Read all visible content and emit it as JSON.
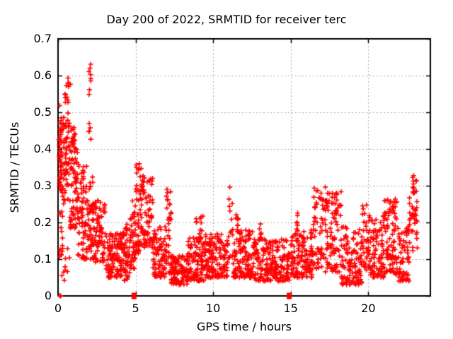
{
  "window": {
    "background": "#ffffff",
    "text_color": "#000000"
  },
  "chart_data": {
    "type": "scatter",
    "title": "Day 200 of 2022, SRMTID for receiver terc",
    "xlabel": "GPS time / hours",
    "ylabel": "SRMTID / TECUs",
    "xlim": [
      0,
      24
    ],
    "ylim": [
      0,
      0.7
    ],
    "xticks": {
      "values": [
        0,
        5,
        10,
        15,
        20
      ],
      "labels": [
        "0",
        "5",
        "10",
        "15",
        "20"
      ]
    },
    "yticks": {
      "values": [
        0,
        0.1,
        0.2,
        0.3,
        0.4,
        0.5,
        0.6,
        0.7
      ],
      "labels": [
        "0",
        "0.1",
        "0.2",
        "0.3",
        "0.4",
        "0.5",
        "0.6",
        "0.7"
      ]
    },
    "grid": true,
    "grid_color": "#a8a8a8",
    "axis_color": "#000000",
    "legend_position": "none",
    "marker": {
      "shape": "plus",
      "size": 7,
      "color": "#ff0000"
    },
    "series": [
      {
        "name": "SRMTID",
        "representation": "density_bands",
        "seed": 42,
        "bands": [
          [
            0.08,
            0.3,
            0.1,
            0.52,
            40,
            1
          ],
          [
            0.05,
            0.25,
            0.3,
            0.47,
            25,
            1
          ],
          [
            0.1,
            1.0,
            0.04,
            0.13,
            10,
            1
          ],
          [
            0.3,
            0.75,
            0.25,
            0.5,
            55,
            1
          ],
          [
            0.45,
            0.8,
            0.52,
            0.595,
            13,
            1
          ],
          [
            0.75,
            1.25,
            0.18,
            0.47,
            75,
            1.2
          ],
          [
            1.25,
            1.85,
            0.1,
            0.36,
            75,
            1.3
          ],
          [
            1.85,
            2.25,
            0.1,
            0.34,
            45,
            1.2
          ],
          [
            1.95,
            2.15,
            0.42,
            0.5,
            5,
            1
          ],
          [
            1.97,
            2.12,
            0.545,
            0.645,
            8,
            1
          ],
          [
            2.25,
            3.05,
            0.09,
            0.26,
            85,
            1.3
          ],
          [
            3.05,
            4.25,
            0.05,
            0.17,
            115,
            1.3
          ],
          [
            4.0,
            4.3,
            0.13,
            0.18,
            8,
            1
          ],
          [
            4.25,
            4.65,
            0.04,
            0.2,
            42,
            1.2
          ],
          [
            4.65,
            5.0,
            0.07,
            0.26,
            40,
            1.2
          ],
          [
            5.0,
            5.4,
            0.11,
            0.36,
            50,
            1.2
          ],
          [
            5.4,
            6.1,
            0.13,
            0.33,
            75,
            1.3
          ],
          [
            6.1,
            6.95,
            0.05,
            0.19,
            75,
            1.3
          ],
          [
            6.95,
            7.3,
            0.06,
            0.3,
            38,
            1.2
          ],
          [
            7.3,
            8.35,
            0.03,
            0.11,
            100,
            1.2
          ],
          [
            8.35,
            9.4,
            0.04,
            0.16,
            95,
            1.3
          ],
          [
            8.9,
            9.35,
            0.15,
            0.225,
            13,
            1
          ],
          [
            9.4,
            10.9,
            0.05,
            0.17,
            140,
            1.4
          ],
          [
            10.9,
            11.25,
            0.2,
            0.31,
            6,
            1
          ],
          [
            10.9,
            11.3,
            0.08,
            0.2,
            15,
            1
          ],
          [
            11.3,
            12.6,
            0.05,
            0.18,
            120,
            1.5
          ],
          [
            11.4,
            11.65,
            0.16,
            0.225,
            9,
            1
          ],
          [
            12.6,
            14.9,
            0.04,
            0.16,
            200,
            1.5
          ],
          [
            12.95,
            13.15,
            0.14,
            0.21,
            7,
            1
          ],
          [
            15.0,
            16.45,
            0.05,
            0.18,
            130,
            1.5
          ],
          [
            15.35,
            15.65,
            0.16,
            0.23,
            7,
            1
          ],
          [
            16.45,
            17.15,
            0.07,
            0.295,
            55,
            1.3
          ],
          [
            17.15,
            18.25,
            0.06,
            0.285,
            80,
            1.6
          ],
          [
            17.2,
            17.45,
            0.22,
            0.3,
            8,
            1
          ],
          [
            17.8,
            18.1,
            0.2,
            0.28,
            8,
            1
          ],
          [
            18.25,
            19.6,
            0.03,
            0.19,
            110,
            1.4
          ],
          [
            19.6,
            20.15,
            0.07,
            0.26,
            45,
            1.3
          ],
          [
            20.15,
            21.0,
            0.05,
            0.21,
            75,
            1.4
          ],
          [
            20.95,
            21.15,
            0.17,
            0.28,
            8,
            1
          ],
          [
            21.0,
            21.85,
            0.06,
            0.27,
            70,
            1.5
          ],
          [
            21.55,
            21.75,
            0.16,
            0.27,
            8,
            1
          ],
          [
            21.85,
            22.65,
            0.04,
            0.19,
            65,
            1.4
          ],
          [
            22.65,
            23.05,
            0.11,
            0.27,
            22,
            1
          ],
          [
            22.85,
            23.1,
            0.28,
            0.33,
            14,
            1
          ],
          [
            23.0,
            23.25,
            0.13,
            0.26,
            10,
            1
          ]
        ],
        "zero_points": [
          [
            0.12,
            0
          ],
          [
            0.18,
            0
          ]
        ],
        "zero_squares": [
          [
            4.9,
            0
          ],
          [
            14.9,
            0
          ]
        ]
      }
    ]
  }
}
